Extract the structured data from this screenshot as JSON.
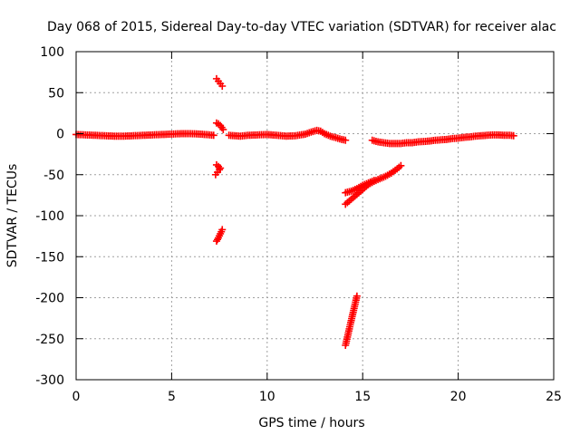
{
  "chart_data": {
    "type": "scatter",
    "title": "Day 068 of 2015, Sidereal Day-to-day VTEC variation (SDTVAR) for receiver alac",
    "xlabel": "GPS time / hours",
    "ylabel": "SDTVAR / TECUs",
    "xlim": [
      0,
      25
    ],
    "ylim": [
      -300,
      100
    ],
    "xticks": [
      0,
      5,
      10,
      15,
      20,
      25
    ],
    "yticks": [
      100,
      50,
      0,
      -50,
      -100,
      -150,
      -200,
      -250,
      -300
    ],
    "xtick_labels": [
      "0",
      "5",
      "10",
      "15",
      "20",
      "25"
    ],
    "ytick_labels": [
      "100",
      "50",
      "0",
      "-50",
      "-100",
      "-150",
      "-200",
      "-250",
      "-300"
    ],
    "grid": true,
    "marker": "+",
    "series_color": "#ff0000",
    "series": [
      {
        "segments": [
          [
            [
              0.0,
              -1
            ],
            [
              0.5,
              -1.5
            ],
            [
              1.0,
              -2
            ],
            [
              1.5,
              -2.5
            ],
            [
              2.0,
              -3
            ],
            [
              2.5,
              -3
            ],
            [
              3.0,
              -2.5
            ],
            [
              3.5,
              -2
            ],
            [
              4.0,
              -1.5
            ],
            [
              4.5,
              -1
            ],
            [
              5.0,
              -0.5
            ],
            [
              5.5,
              0
            ],
            [
              6.0,
              0
            ],
            [
              6.5,
              -0.5
            ],
            [
              7.0,
              -1.5
            ],
            [
              7.2,
              -2
            ]
          ],
          [
            [
              7.35,
              67
            ],
            [
              7.45,
              64
            ],
            [
              7.55,
              61
            ],
            [
              7.65,
              58
            ]
          ],
          [
            [
              7.35,
              13
            ],
            [
              7.45,
              12
            ],
            [
              7.55,
              10
            ],
            [
              7.7,
              5
            ]
          ],
          [
            [
              7.35,
              -38
            ],
            [
              7.45,
              -40
            ],
            [
              7.55,
              -42
            ]
          ],
          [
            [
              7.3,
              -50
            ],
            [
              7.4,
              -47
            ],
            [
              7.5,
              -44
            ]
          ],
          [
            [
              7.35,
              -131
            ],
            [
              7.45,
              -127
            ],
            [
              7.55,
              -122
            ],
            [
              7.65,
              -117
            ]
          ],
          [
            [
              8.0,
              -2
            ],
            [
              8.3,
              -2.5
            ],
            [
              8.6,
              -3
            ],
            [
              9.0,
              -2
            ],
            [
              9.5,
              -1.5
            ],
            [
              10.0,
              -1
            ],
            [
              10.5,
              -2
            ],
            [
              11.0,
              -3
            ],
            [
              11.5,
              -2.5
            ],
            [
              12.0,
              -0.5
            ],
            [
              12.3,
              2
            ],
            [
              12.6,
              4
            ],
            [
              12.8,
              3
            ],
            [
              13.0,
              0
            ],
            [
              13.3,
              -3
            ],
            [
              13.6,
              -5
            ],
            [
              13.9,
              -7
            ],
            [
              14.1,
              -8
            ]
          ],
          [
            [
              14.1,
              -86
            ],
            [
              14.3,
              -82
            ],
            [
              14.5,
              -78
            ],
            [
              14.7,
              -74
            ],
            [
              14.9,
              -70
            ],
            [
              15.1,
              -66
            ],
            [
              15.3,
              -62
            ],
            [
              15.6,
              -58
            ],
            [
              15.9,
              -55
            ],
            [
              16.2,
              -52
            ],
            [
              16.5,
              -48
            ],
            [
              16.8,
              -43
            ],
            [
              17.0,
              -39
            ]
          ],
          [
            [
              14.1,
              -72
            ],
            [
              14.4,
              -70
            ],
            [
              14.7,
              -67
            ],
            [
              15.0,
              -63
            ],
            [
              15.3,
              -60
            ],
            [
              15.6,
              -57
            ]
          ],
          [
            [
              14.1,
              -258
            ],
            [
              14.2,
              -248
            ],
            [
              14.3,
              -238
            ],
            [
              14.4,
              -228
            ],
            [
              14.5,
              -218
            ],
            [
              14.6,
              -208
            ],
            [
              14.7,
              -198
            ]
          ],
          [
            [
              15.5,
              -8
            ],
            [
              15.8,
              -10
            ],
            [
              16.1,
              -11
            ],
            [
              16.4,
              -12
            ],
            [
              16.7,
              -12
            ],
            [
              17.0,
              -12
            ],
            [
              17.3,
              -11
            ],
            [
              17.6,
              -11
            ],
            [
              17.9,
              -10
            ],
            [
              18.2,
              -9.5
            ],
            [
              18.5,
              -9
            ],
            [
              18.8,
              -8
            ],
            [
              19.1,
              -7.5
            ],
            [
              19.4,
              -7
            ],
            [
              19.7,
              -6
            ],
            [
              20.0,
              -5.5
            ],
            [
              20.3,
              -4.5
            ],
            [
              20.6,
              -4
            ],
            [
              20.9,
              -3
            ],
            [
              21.2,
              -2.5
            ],
            [
              21.5,
              -2
            ],
            [
              21.8,
              -1.5
            ],
            [
              22.1,
              -1.5
            ],
            [
              22.4,
              -2
            ],
            [
              22.7,
              -2
            ],
            [
              22.9,
              -2.5
            ]
          ]
        ]
      }
    ]
  }
}
